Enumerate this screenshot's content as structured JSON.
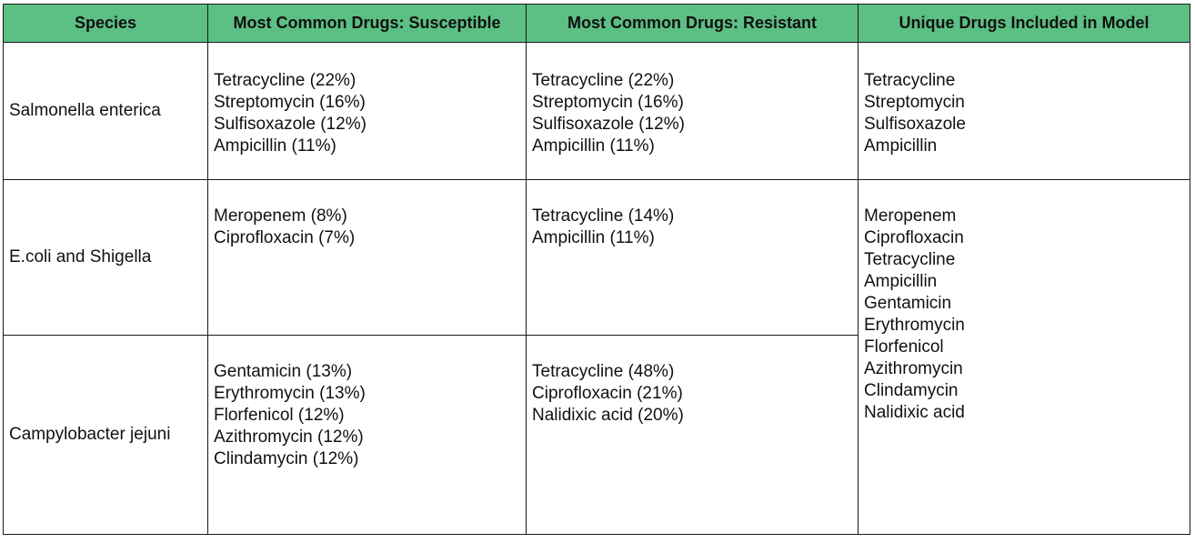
{
  "colors": {
    "header_bg": "#5cbf83",
    "border": "#1a1a1a",
    "text": "#111111"
  },
  "headers": [
    "Species",
    "Most Common Drugs: Susceptible",
    "Most Common Drugs: Resistant",
    "Unique Drugs Included in Model"
  ],
  "rows": [
    {
      "species": "Salmonella enterica",
      "susceptible": [
        "Tetracycline (22%)",
        "Streptomycin (16%)",
        "Sulfisoxazole (12%)",
        "Ampicillin (11%)"
      ],
      "resistant": [
        "Tetracycline (22%)",
        "Streptomycin (16%)",
        "Sulfisoxazole (12%)",
        "Ampicillin (11%)"
      ],
      "unique": [
        "Tetracycline",
        "Streptomycin",
        "Sulfisoxazole",
        "Ampicillin"
      ]
    },
    {
      "species": "E.coli and Shigella",
      "susceptible": [
        "Meropenem (8%)",
        "Ciprofloxacin (7%)"
      ],
      "resistant": [
        "Tetracycline (14%)",
        "Ampicillin (11%)"
      ],
      "unique": [
        "Meropenem",
        "Ciprofloxacin",
        "Tetracycline",
        "Ampicillin",
        "Gentamicin",
        "Erythromycin",
        "Florfenicol",
        "Azithromycin",
        "Clindamycin",
        "Nalidixic acid"
      ]
    },
    {
      "species": "Campylobacter jejuni",
      "susceptible": [
        "Gentamicin (13%)",
        "Erythromycin (13%)",
        "Florfenicol (12%)",
        "Azithromycin (12%)",
        "Clindamycin (12%)"
      ],
      "resistant": [
        "Tetracycline (48%)",
        "Ciprofloxacin (21%)",
        "Nalidixic acid (20%)"
      ]
    }
  ]
}
